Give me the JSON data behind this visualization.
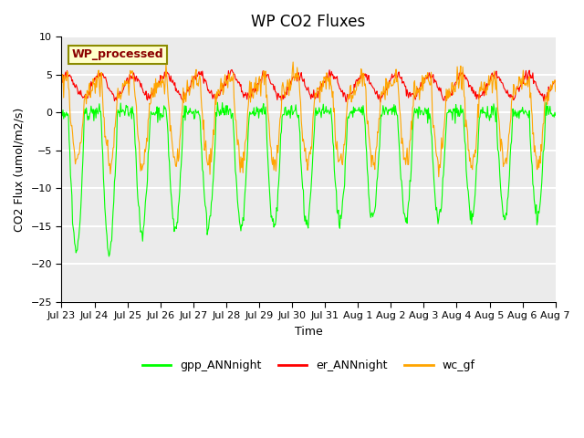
{
  "title": "WP CO2 Fluxes",
  "xlabel": "Time",
  "ylabel_text": "CO2 Flux (umol/m2/s)",
  "ylim": [
    -25,
    10
  ],
  "legend_entries": [
    "gpp_ANNnight",
    "er_ANNnight",
    "wc_gf"
  ],
  "line_colors": [
    "#00FF00",
    "#FF0000",
    "#FFA500"
  ],
  "annotation_text": "WP_processed",
  "annotation_bg": "#FFFFCC",
  "annotation_fg": "#8B0000",
  "xtick_labels": [
    "Jul 23",
    "Jul 24",
    "Jul 25",
    "Jul 26",
    "Jul 27",
    "Jul 28",
    "Jul 29",
    "Jul 30",
    "Jul 31",
    "Aug 1",
    "Aug 2",
    "Aug 3",
    "Aug 4",
    "Aug 5",
    "Aug 6",
    "Aug 7"
  ],
  "n_days": 15,
  "points_per_day": 48
}
